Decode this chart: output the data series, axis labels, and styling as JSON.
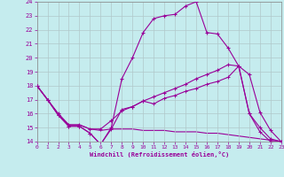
{
  "xlabel": "Windchill (Refroidissement éolien,°C)",
  "bg_color": "#c5ecee",
  "line_color": "#990099",
  "grid_color": "#b0c8ca",
  "xlim": [
    0,
    23
  ],
  "ylim": [
    14,
    24
  ],
  "yticks": [
    14,
    15,
    16,
    17,
    18,
    19,
    20,
    21,
    22,
    23,
    24
  ],
  "xticks": [
    0,
    1,
    2,
    3,
    4,
    5,
    6,
    7,
    8,
    9,
    10,
    11,
    12,
    13,
    14,
    15,
    16,
    17,
    18,
    19,
    20,
    21,
    22,
    23
  ],
  "line_big_x": [
    0,
    1,
    2,
    3,
    4,
    5,
    6,
    7,
    8,
    9,
    10,
    11,
    12,
    13,
    14,
    15,
    16,
    17,
    18,
    19,
    20,
    21,
    22,
    23
  ],
  "line_big_y": [
    18.0,
    17.0,
    15.9,
    15.1,
    15.1,
    14.6,
    13.8,
    15.0,
    18.5,
    20.0,
    21.8,
    22.8,
    23.0,
    23.1,
    23.7,
    24.0,
    21.8,
    21.7,
    20.7,
    19.4,
    18.8,
    16.1,
    14.8,
    14.0
  ],
  "line_mid_x": [
    0,
    1,
    2,
    3,
    4,
    5,
    6,
    7,
    8,
    9,
    10,
    11,
    12,
    13,
    14,
    15,
    16,
    17,
    18,
    19,
    20,
    21,
    22,
    23
  ],
  "line_mid_y": [
    18.0,
    17.0,
    16.0,
    15.2,
    15.2,
    14.9,
    14.9,
    15.5,
    16.2,
    16.5,
    16.9,
    17.2,
    17.5,
    17.8,
    18.1,
    18.5,
    18.8,
    19.1,
    19.5,
    19.4,
    16.0,
    15.0,
    14.2,
    14.0
  ],
  "line_flat_x": [
    0,
    1,
    2,
    3,
    4,
    5,
    6,
    7,
    8,
    9,
    10,
    11,
    12,
    13,
    14,
    15,
    16,
    17,
    18,
    19,
    20,
    21,
    22,
    23
  ],
  "line_flat_y": [
    18.0,
    17.0,
    16.0,
    15.2,
    15.2,
    14.9,
    14.8,
    14.9,
    14.9,
    14.9,
    14.8,
    14.8,
    14.8,
    14.7,
    14.7,
    14.7,
    14.6,
    14.6,
    14.5,
    14.4,
    14.3,
    14.2,
    14.1,
    14.0
  ],
  "line_low_x": [
    0,
    1,
    2,
    3,
    4,
    5,
    6,
    7,
    8,
    9,
    10,
    11,
    12,
    13,
    14,
    15,
    16,
    17,
    18,
    19,
    20,
    21,
    22,
    23
  ],
  "line_low_y": [
    18.0,
    17.0,
    15.9,
    15.1,
    15.1,
    14.6,
    13.8,
    14.9,
    16.3,
    16.5,
    16.9,
    16.7,
    17.1,
    17.3,
    17.6,
    17.8,
    18.1,
    18.3,
    18.6,
    19.4,
    16.0,
    14.7,
    14.0,
    14.0
  ]
}
